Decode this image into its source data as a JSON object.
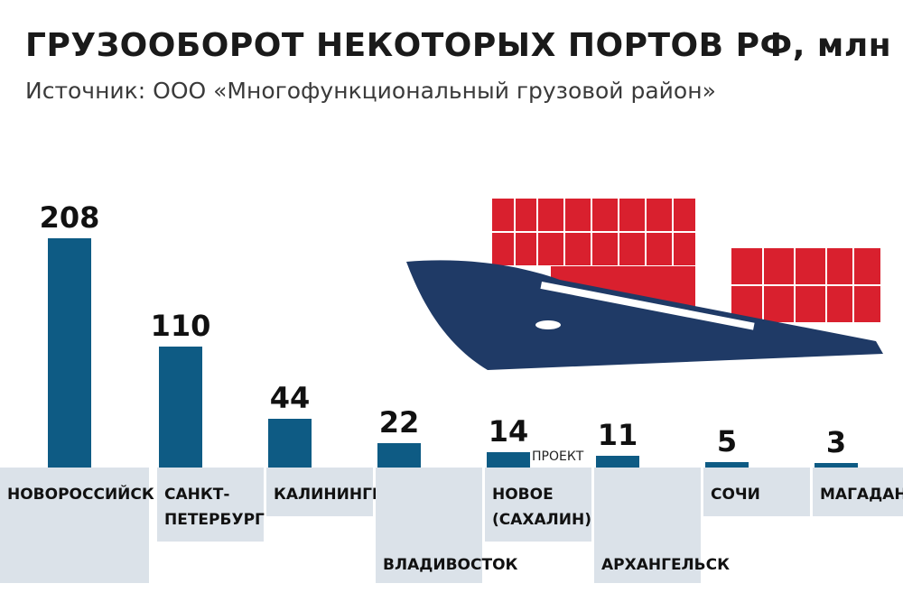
{
  "header": {
    "title": "ГРУЗООБОРОТ НЕКОТОРЫХ ПОРТОВ РФ, млн т",
    "subtitle": "Источник: ООО «Многофункциональный грузовой район»"
  },
  "colors": {
    "bar": "#0e5b84",
    "label_box": "#dbe2e9",
    "ship_hull": "#1f3a66",
    "ship_containers": "#d9202e"
  },
  "illustration": {
    "icon": "cargo-ship-icon"
  },
  "chart_data": {
    "type": "bar",
    "title": "ГРУЗООБОРОТ НЕКОТОРЫХ ПОРТОВ РФ, млн т",
    "categories": [
      "НОВОРОССИЙСК",
      "САНКТ-ПЕТЕРБУРГ",
      "КАЛИНИНГРАД",
      "ВЛАДИВОСТОК",
      "НОВОЕ (САХАЛИН)",
      "АРХАНГЕЛЬСК",
      "СОЧИ",
      "МАГАДАН"
    ],
    "category_lines": [
      [
        "НОВОРОССИЙСК"
      ],
      [
        "САНКТ-",
        "ПЕТЕРБУРГ"
      ],
      [
        "КАЛИНИНГРАД"
      ],
      [
        "ВЛАДИВОСТОК"
      ],
      [
        "НОВОЕ",
        "(САХАЛИН)"
      ],
      [
        "АРХАНГЕЛЬСК"
      ],
      [
        "СОЧИ"
      ],
      [
        "МАГАДАН"
      ]
    ],
    "values": [
      208,
      110,
      44,
      22,
      14,
      11,
      5,
      3
    ],
    "value_labels": [
      "208",
      "110",
      "44",
      "22",
      "14",
      "11",
      "5",
      "3"
    ],
    "annotations": [
      {
        "category": "НОВОЕ (САХАЛИН)",
        "text": "ПРОЕКТ"
      }
    ],
    "ylim": [
      0,
      208
    ],
    "grid": false,
    "legend": "none"
  }
}
